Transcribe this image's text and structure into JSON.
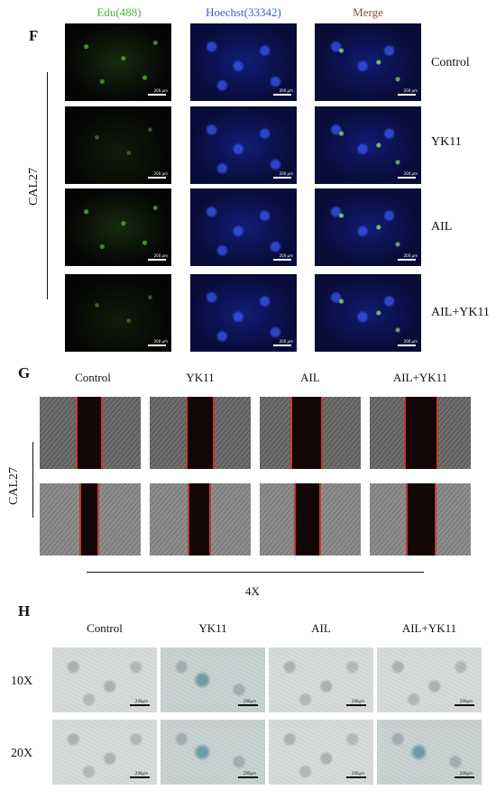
{
  "panel_f": {
    "letter": "F",
    "cell_line": "CAL27",
    "channels": [
      {
        "label": "Edu(488)",
        "color": "#4fb33a"
      },
      {
        "label": "Hoechst(33342)",
        "color": "#3b5fc4"
      },
      {
        "label": "Merge",
        "color": "#8a4a3a"
      }
    ],
    "rows": [
      "Control",
      "YK11",
      "AIL",
      "AIL+YK11"
    ],
    "scale_text": "200 µm"
  },
  "panel_g": {
    "letter": "G",
    "cell_line": "CAL27",
    "columns": [
      "Control",
      "YK11",
      "AIL",
      "AIL+YK11"
    ],
    "magnification": "4X"
  },
  "panel_h": {
    "letter": "H",
    "columns": [
      "Control",
      "YK11",
      "AIL",
      "AIL+YK11"
    ],
    "rows": [
      "10X",
      "20X"
    ],
    "scale_text": "200µm"
  }
}
